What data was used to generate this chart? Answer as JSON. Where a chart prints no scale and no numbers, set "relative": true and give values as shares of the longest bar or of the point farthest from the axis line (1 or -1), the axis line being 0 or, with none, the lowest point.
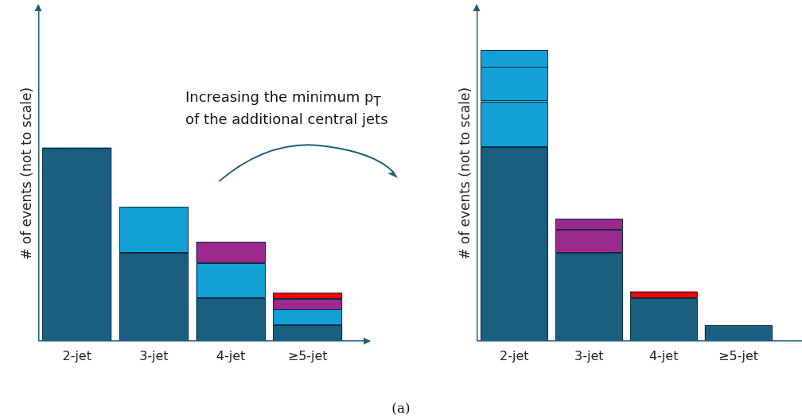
{
  "chart_data": [
    {
      "type": "bar",
      "relative": true,
      "stacked": true,
      "ylabel": "# of events (not to scale)",
      "categories": [
        "2-jet",
        "3-jet",
        "4-jet",
        "≥5-jet"
      ],
      "series": [
        {
          "color": "#1a5f80",
          "values": [
            1.0,
            0.456,
            0.222,
            0.081
          ]
        },
        {
          "color": "#12a0d7",
          "values": [
            null,
            0.238,
            0.181,
            0.081
          ]
        },
        {
          "color": "#9b2a8e",
          "values": [
            null,
            null,
            0.109,
            0.056
          ]
        },
        {
          "color": "#ff0000",
          "values": [
            null,
            null,
            null,
            0.032
          ]
        }
      ],
      "annotations": [
        "Increasing the minimum p$_{T}$ of the additional central jets",
        "(a)"
      ]
    },
    {
      "type": "bar",
      "relative": true,
      "stacked": true,
      "ylabel": "# of events (not to scale)",
      "categories": [
        "2-jet",
        "3-jet",
        "4-jet",
        "≥5-jet"
      ],
      "series": [
        {
          "color": "#1a5f80",
          "values": [
            0.667,
            0.304,
            0.148,
            0.054
          ]
        },
        {
          "color": "#12a0d7",
          "values": [
            0.156,
            null,
            null,
            null
          ]
        },
        {
          "color": "#12a0d7",
          "values": [
            0.118,
            null,
            null,
            null
          ]
        },
        {
          "color": "#12a0d7",
          "values": [
            0.059,
            null,
            null,
            null
          ]
        },
        {
          "color": "#9b2a8e",
          "values": [
            null,
            0.078,
            null,
            null
          ]
        },
        {
          "color": "#9b2a8e",
          "values": [
            null,
            0.038,
            null,
            null
          ]
        },
        {
          "color": "#ff0000",
          "values": [
            null,
            null,
            0.022,
            null
          ]
        }
      ]
    }
  ]
}
